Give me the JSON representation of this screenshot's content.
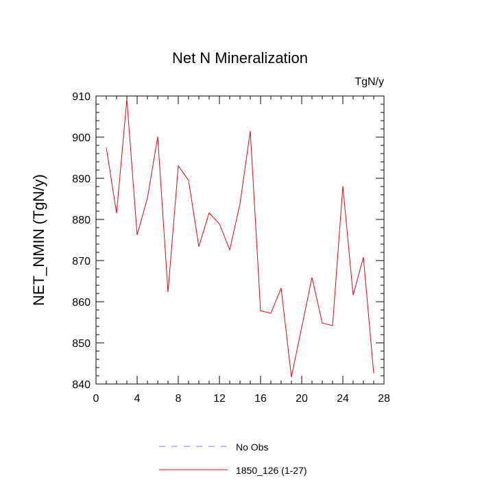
{
  "chart_data": {
    "type": "line",
    "title": "Net N Mineralization",
    "units_label": "TgN/y",
    "xlabel": "",
    "ylabel": "NET_NMIN  (TgN/y)",
    "xlim": [
      0,
      28
    ],
    "ylim": [
      840,
      910
    ],
    "x_ticks": [
      0,
      4,
      8,
      12,
      16,
      20,
      24,
      28
    ],
    "y_ticks": [
      840,
      850,
      860,
      870,
      880,
      890,
      900,
      910
    ],
    "series": [
      {
        "name": "1850_126 (1-27)",
        "color": "#e8000b",
        "x": [
          1,
          2,
          3,
          4,
          5,
          6,
          7,
          8,
          9,
          10,
          11,
          12,
          13,
          14,
          15,
          16,
          17,
          18,
          19,
          20,
          21,
          22,
          23,
          24,
          25,
          26,
          27
        ],
        "values": [
          897.5,
          881.5,
          909.2,
          876.2,
          885.2,
          900.1,
          862.3,
          893.0,
          889.5,
          873.4,
          881.6,
          878.9,
          872.6,
          883.8,
          901.5,
          857.8,
          857.2,
          863.3,
          841.7,
          853.8,
          865.9,
          854.8,
          854.2,
          888.1,
          861.6,
          870.8,
          842.6
        ]
      }
    ],
    "legend": [
      {
        "label": "No Obs",
        "style": "dashed",
        "color": "#7b7bff"
      },
      {
        "label": "1850_126 (1-27)",
        "style": "solid",
        "color": "#e8000b"
      }
    ]
  }
}
